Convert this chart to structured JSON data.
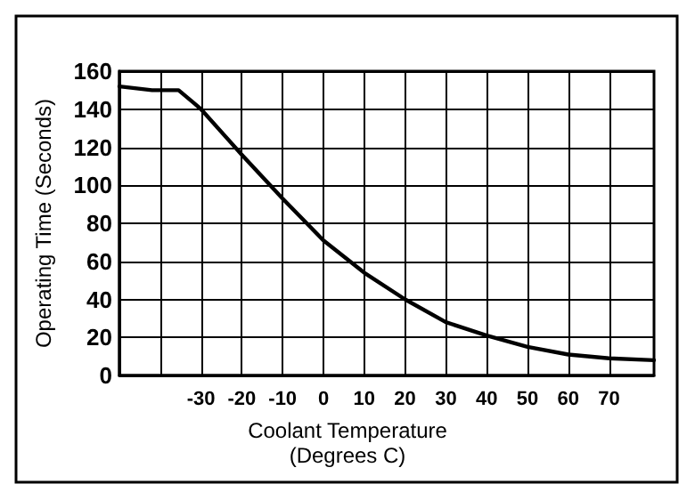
{
  "chart_data": {
    "type": "line",
    "xlabel": "Coolant Temperature\n(Degrees C)",
    "ylabel": "Operating Time (Seconds)",
    "x": [
      -50,
      -42,
      -35.5,
      -31.6,
      -30,
      -20,
      -10,
      0,
      10,
      20,
      30,
      40,
      50,
      60,
      70,
      81
    ],
    "series": [
      {
        "color": "#000000",
        "values": [
          152,
          150,
          150,
          143,
          140,
          116,
          93,
          71,
          54,
          40,
          28,
          21,
          15,
          11,
          9,
          8
        ]
      }
    ],
    "xlim": [
      -50,
      81
    ],
    "ylim": [
      0,
      160
    ],
    "xticks": [
      {
        "value": -50,
        "label": null
      },
      {
        "value": -40,
        "label": null
      },
      -30,
      -20,
      -10,
      0,
      10,
      20,
      30,
      40,
      50,
      60,
      70
    ],
    "yticks": [
      0,
      20,
      40,
      60,
      80,
      100,
      120,
      140,
      160
    ],
    "grid": true,
    "marker": "none",
    "line_style": "solid"
  }
}
